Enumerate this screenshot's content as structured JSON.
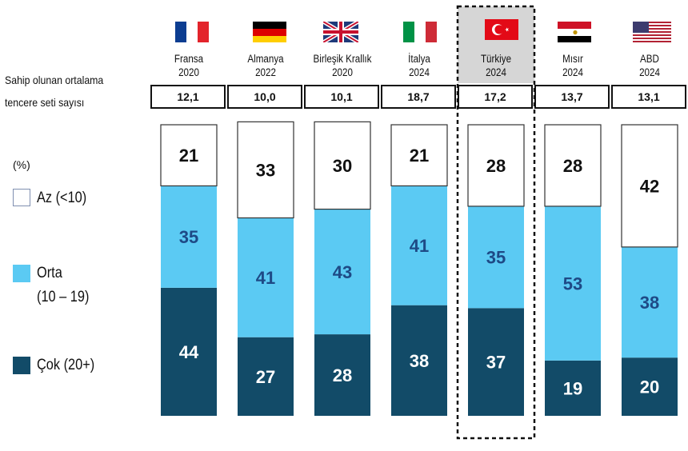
{
  "avg_label": {
    "line1": "Sahip olunan ortalama",
    "line2": "tencere seti sayısı"
  },
  "countries": [
    {
      "name": "Fransa",
      "year": "2020",
      "avg_sets": "12,1"
    },
    {
      "name": "Almanya",
      "year": "2022",
      "avg_sets": "10,0"
    },
    {
      "name": "Birleşik Krallık",
      "year": "2020",
      "avg_sets": "10,1"
    },
    {
      "name": "İtalya",
      "year": "2024",
      "avg_sets": "18,7"
    },
    {
      "name": "Türkiye",
      "year": "2024",
      "avg_sets": "17,2",
      "highlighted": true
    },
    {
      "name": "Mısır",
      "year": "2024",
      "avg_sets": "13,7"
    },
    {
      "name": "ABD",
      "year": "2024",
      "avg_sets": "13,1"
    }
  ],
  "colors": {
    "az": "#ffffff",
    "orta": "#5bcaf3",
    "cok": "#124b68",
    "orta_label": "#1e4a86",
    "highlight": "#d6d6d6"
  },
  "chart_data": {
    "type": "bar",
    "stacked": true,
    "unit": "(%)",
    "categories": [
      "Fransa 2020",
      "Almanya 2022",
      "Birleşik Krallık 2020",
      "İtalya 2024",
      "Türkiye 2024",
      "Mısır 2024",
      "ABD 2024"
    ],
    "series": [
      {
        "name": "Az (<10)",
        "values": [
          21,
          33,
          30,
          21,
          28,
          28,
          42
        ]
      },
      {
        "name": "Orta",
        "range": "(10 – 19)",
        "values": [
          35,
          41,
          43,
          41,
          35,
          53,
          38
        ]
      },
      {
        "name": "Çok (20+)",
        "values": [
          44,
          27,
          28,
          38,
          37,
          19,
          20
        ]
      }
    ],
    "ylim": [
      0,
      100
    ],
    "legend": "left"
  }
}
